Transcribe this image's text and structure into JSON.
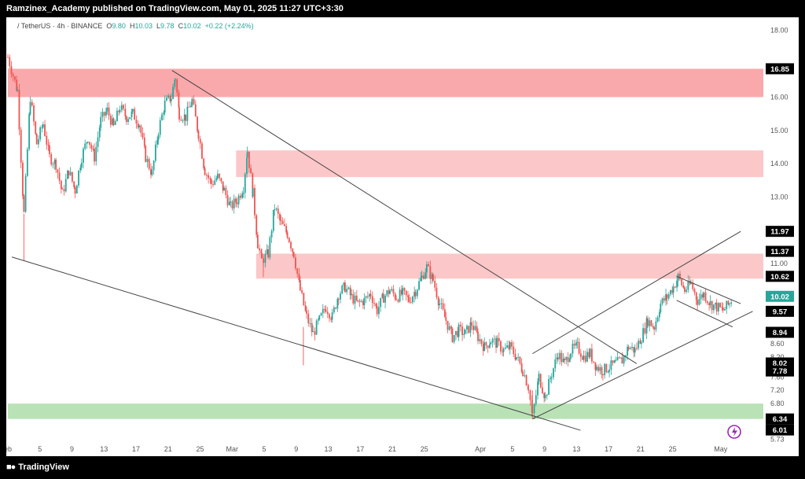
{
  "header": {
    "published_line": "Ramzinex_Academy published on TradingView.com, May 01, 2025 11:27 UTC+3:30"
  },
  "symbol": {
    "pair": "/ TetherUS · 4h · BINANCE",
    "open_label": "O",
    "open": "9.80",
    "high_label": "H",
    "high": "10.03",
    "low_label": "L",
    "low": "9.78",
    "close_label": "C",
    "close": "10.02",
    "change": "+0.22 (+2.24%)"
  },
  "footer": {
    "brand": "TradingView",
    "logo": "tradingview-logo-icon"
  },
  "colors": {
    "up": "#26a69a",
    "down": "#ef5350",
    "resistance_zone": "#f9a9ab",
    "resistance_zone_light": "#fbc7c8",
    "support_zone": "#b9e2b7",
    "trendline": "#444444",
    "alert_icon": "#9c27b0"
  },
  "chart_data": {
    "type": "candlestick",
    "title": "",
    "ylim": [
      5.6,
      18.3
    ],
    "y_ticks": [
      "18.00",
      "16.00",
      "15.00",
      "14.00",
      "13.00",
      "11.00",
      "8.60",
      "8.20",
      "7.60",
      "7.20",
      "6.80",
      "5.73"
    ],
    "y_tick_values": [
      18.0,
      16.0,
      15.0,
      14.0,
      13.0,
      11.0,
      8.6,
      8.2,
      7.6,
      7.2,
      6.8,
      5.73
    ],
    "price_labels": [
      {
        "text": "16.85",
        "value": 16.85,
        "style": "dark"
      },
      {
        "text": "11.97",
        "value": 11.97,
        "style": "dark"
      },
      {
        "text": "11.37",
        "value": 11.37,
        "style": "dark"
      },
      {
        "text": "10.62",
        "value": 10.62,
        "style": "dark"
      },
      {
        "text": "10.02",
        "value": 10.02,
        "style": "green"
      },
      {
        "text": "9.57",
        "value": 9.57,
        "style": "dark"
      },
      {
        "text": "8.94",
        "value": 8.94,
        "style": "dark"
      },
      {
        "text": "8.02",
        "value": 8.02,
        "style": "dark"
      },
      {
        "text": "7.78",
        "value": 7.78,
        "style": "dark"
      },
      {
        "text": "6.34",
        "value": 6.34,
        "style": "dark"
      },
      {
        "text": "6.01",
        "value": 6.01,
        "style": "dark"
      }
    ],
    "x_ticks": [
      {
        "label": "eb",
        "day": 0
      },
      {
        "label": "5",
        "day": 4
      },
      {
        "label": "9",
        "day": 8
      },
      {
        "label": "13",
        "day": 12
      },
      {
        "label": "17",
        "day": 16
      },
      {
        "label": "21",
        "day": 20
      },
      {
        "label": "25",
        "day": 24
      },
      {
        "label": "Mar",
        "day": 28
      },
      {
        "label": "5",
        "day": 32
      },
      {
        "label": "9",
        "day": 36
      },
      {
        "label": "13",
        "day": 40
      },
      {
        "label": "17",
        "day": 44
      },
      {
        "label": "21",
        "day": 48
      },
      {
        "label": "25",
        "day": 52
      },
      {
        "label": "Apr",
        "day": 59
      },
      {
        "label": "5",
        "day": 63
      },
      {
        "label": "9",
        "day": 67
      },
      {
        "label": "13",
        "day": 71
      },
      {
        "label": "17",
        "day": 75
      },
      {
        "label": "21",
        "day": 79
      },
      {
        "label": "25",
        "day": 83
      },
      {
        "label": "May",
        "day": 89
      }
    ],
    "x_range": [
      0,
      90.5
    ],
    "zones": [
      {
        "from": 16.0,
        "to": 16.85,
        "color": "resistance_zone",
        "start_day": 0
      },
      {
        "from": 13.6,
        "to": 14.4,
        "color": "resistance_zone_light",
        "start_day": 28.5
      },
      {
        "from": 10.55,
        "to": 11.3,
        "color": "resistance_zone_light",
        "start_day": 31
      },
      {
        "from": 6.34,
        "to": 6.8,
        "color": "support_zone",
        "start_day": 0
      }
    ],
    "trendlines": [
      {
        "x1": 20.5,
        "y1": 16.8,
        "x2": 78.5,
        "y2": 8.0
      },
      {
        "x1": 0.5,
        "y1": 11.2,
        "x2": 71.5,
        "y2": 6.0
      },
      {
        "x1": 65.5,
        "y1": 6.34,
        "x2": 93.0,
        "y2": 9.57
      },
      {
        "x1": 65.5,
        "y1": 8.3,
        "x2": 91.5,
        "y2": 11.97
      },
      {
        "x1": 83.5,
        "y1": 10.62,
        "x2": 91.5,
        "y2": 9.8
      },
      {
        "x1": 83.5,
        "y1": 9.9,
        "x2": 90.5,
        "y2": 9.1
      }
    ],
    "close_path": [
      [
        0.0,
        17.2
      ],
      [
        1.2,
        16.2
      ],
      [
        2.0,
        12.5
      ],
      [
        2.8,
        16.0
      ],
      [
        3.6,
        14.6
      ],
      [
        4.4,
        15.2
      ],
      [
        5.2,
        14.2
      ],
      [
        6.0,
        14.0
      ],
      [
        6.8,
        13.1
      ],
      [
        7.6,
        13.8
      ],
      [
        8.4,
        13.2
      ],
      [
        9.2,
        14.2
      ],
      [
        10.0,
        14.8
      ],
      [
        10.8,
        14.2
      ],
      [
        11.6,
        15.3
      ],
      [
        12.4,
        15.6
      ],
      [
        13.2,
        15.1
      ],
      [
        14.0,
        15.7
      ],
      [
        14.8,
        15.4
      ],
      [
        15.6,
        15.5
      ],
      [
        16.4,
        15.2
      ],
      [
        17.2,
        14.2
      ],
      [
        18.0,
        13.7
      ],
      [
        18.8,
        15.0
      ],
      [
        19.6,
        15.8
      ],
      [
        20.4,
        16.0
      ],
      [
        20.9,
        16.6
      ],
      [
        21.4,
        15.5
      ],
      [
        22.2,
        15.4
      ],
      [
        23.0,
        15.9
      ],
      [
        23.8,
        14.9
      ],
      [
        24.6,
        13.8
      ],
      [
        25.4,
        13.4
      ],
      [
        26.2,
        13.6
      ],
      [
        27.0,
        13.2
      ],
      [
        27.8,
        12.7
      ],
      [
        28.6,
        12.9
      ],
      [
        29.4,
        13.3
      ],
      [
        29.9,
        14.4
      ],
      [
        30.6,
        13.1
      ],
      [
        31.2,
        11.6
      ],
      [
        31.7,
        11.1
      ],
      [
        32.5,
        11.3
      ],
      [
        33.3,
        12.7
      ],
      [
        34.1,
        12.2
      ],
      [
        34.9,
        11.9
      ],
      [
        35.7,
        11.3
      ],
      [
        36.5,
        10.2
      ],
      [
        37.3,
        9.4
      ],
      [
        38.1,
        8.9
      ],
      [
        38.9,
        9.3
      ],
      [
        39.7,
        9.7
      ],
      [
        40.5,
        9.4
      ],
      [
        41.3,
        10.1
      ],
      [
        42.1,
        10.3
      ],
      [
        42.9,
        10.0
      ],
      [
        43.7,
        9.8
      ],
      [
        44.5,
        9.9
      ],
      [
        45.3,
        10.1
      ],
      [
        46.1,
        9.6
      ],
      [
        46.9,
        10.0
      ],
      [
        47.7,
        10.2
      ],
      [
        48.5,
        10.0
      ],
      [
        49.3,
        10.1
      ],
      [
        50.1,
        9.9
      ],
      [
        50.9,
        10.2
      ],
      [
        51.7,
        10.6
      ],
      [
        52.3,
        10.9
      ],
      [
        53.1,
        10.5
      ],
      [
        53.9,
        9.8
      ],
      [
        54.7,
        9.3
      ],
      [
        55.5,
        8.8
      ],
      [
        56.3,
        9.0
      ],
      [
        57.1,
        8.9
      ],
      [
        57.9,
        9.2
      ],
      [
        58.7,
        8.8
      ],
      [
        59.5,
        8.5
      ],
      [
        60.3,
        8.7
      ],
      [
        61.1,
        8.6
      ],
      [
        61.9,
        8.4
      ],
      [
        62.7,
        8.5
      ],
      [
        63.5,
        8.2
      ],
      [
        64.3,
        7.8
      ],
      [
        65.0,
        7.3
      ],
      [
        65.5,
        6.4
      ],
      [
        66.3,
        7.6
      ],
      [
        67.1,
        7.0
      ],
      [
        67.9,
        7.7
      ],
      [
        68.7,
        8.3
      ],
      [
        69.5,
        8.0
      ],
      [
        70.3,
        8.4
      ],
      [
        71.1,
        8.5
      ],
      [
        71.9,
        8.2
      ],
      [
        72.7,
        8.3
      ],
      [
        73.5,
        7.9
      ],
      [
        74.3,
        7.8
      ],
      [
        75.1,
        7.9
      ],
      [
        75.9,
        8.0
      ],
      [
        76.7,
        8.1
      ],
      [
        77.5,
        8.5
      ],
      [
        78.3,
        8.4
      ],
      [
        79.1,
        8.8
      ],
      [
        79.9,
        9.3
      ],
      [
        80.7,
        9.1
      ],
      [
        81.5,
        9.8
      ],
      [
        82.3,
        10.0
      ],
      [
        83.1,
        10.3
      ],
      [
        83.7,
        10.6
      ],
      [
        84.5,
        10.2
      ],
      [
        85.3,
        10.4
      ],
      [
        86.1,
        9.9
      ],
      [
        86.9,
        10.1
      ],
      [
        87.7,
        9.8
      ],
      [
        88.5,
        9.7
      ],
      [
        89.3,
        9.6
      ],
      [
        90.1,
        9.8
      ],
      [
        90.5,
        10.02
      ]
    ]
  }
}
